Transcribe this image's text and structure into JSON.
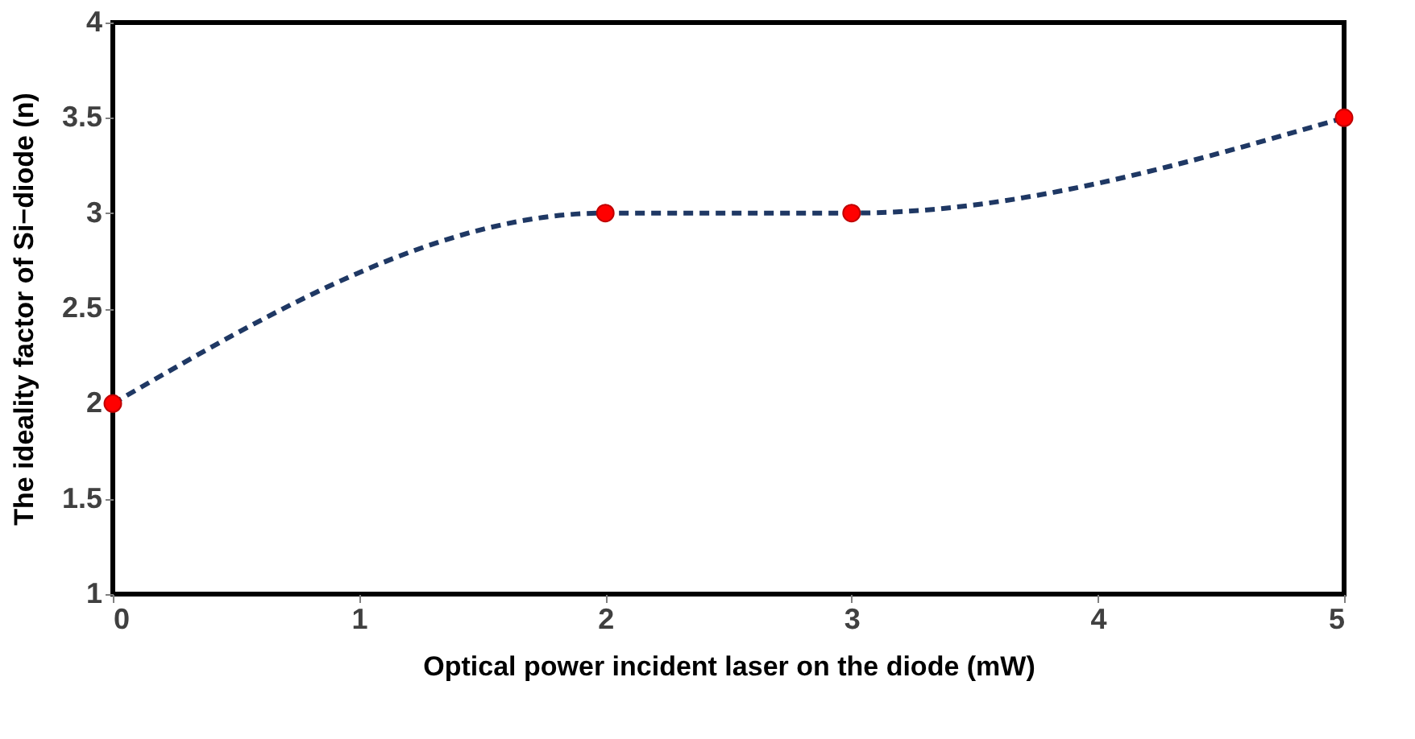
{
  "chart_data": {
    "type": "line",
    "xlabel": "Optical power incident laser on the diode (mW)",
    "ylabel": "The ideality factor of Si−diode (n)",
    "x": [
      0,
      2,
      3,
      5
    ],
    "series": [
      {
        "color": "#1f3864",
        "colors": [
          "#ff0000",
          "#ff0000",
          "#ff0000",
          "#ff0000"
        ],
        "values": [
          2,
          3,
          3,
          3.5
        ]
      }
    ],
    "xlim": [
      0,
      5
    ],
    "xticks": [
      0,
      1,
      2,
      3,
      4,
      5
    ],
    "ylim": [
      1,
      4
    ],
    "yticks": [
      1,
      1.5,
      2,
      2.5,
      3,
      3.5,
      4
    ],
    "grid": false,
    "marker": "circle",
    "line_style": "dashed"
  }
}
